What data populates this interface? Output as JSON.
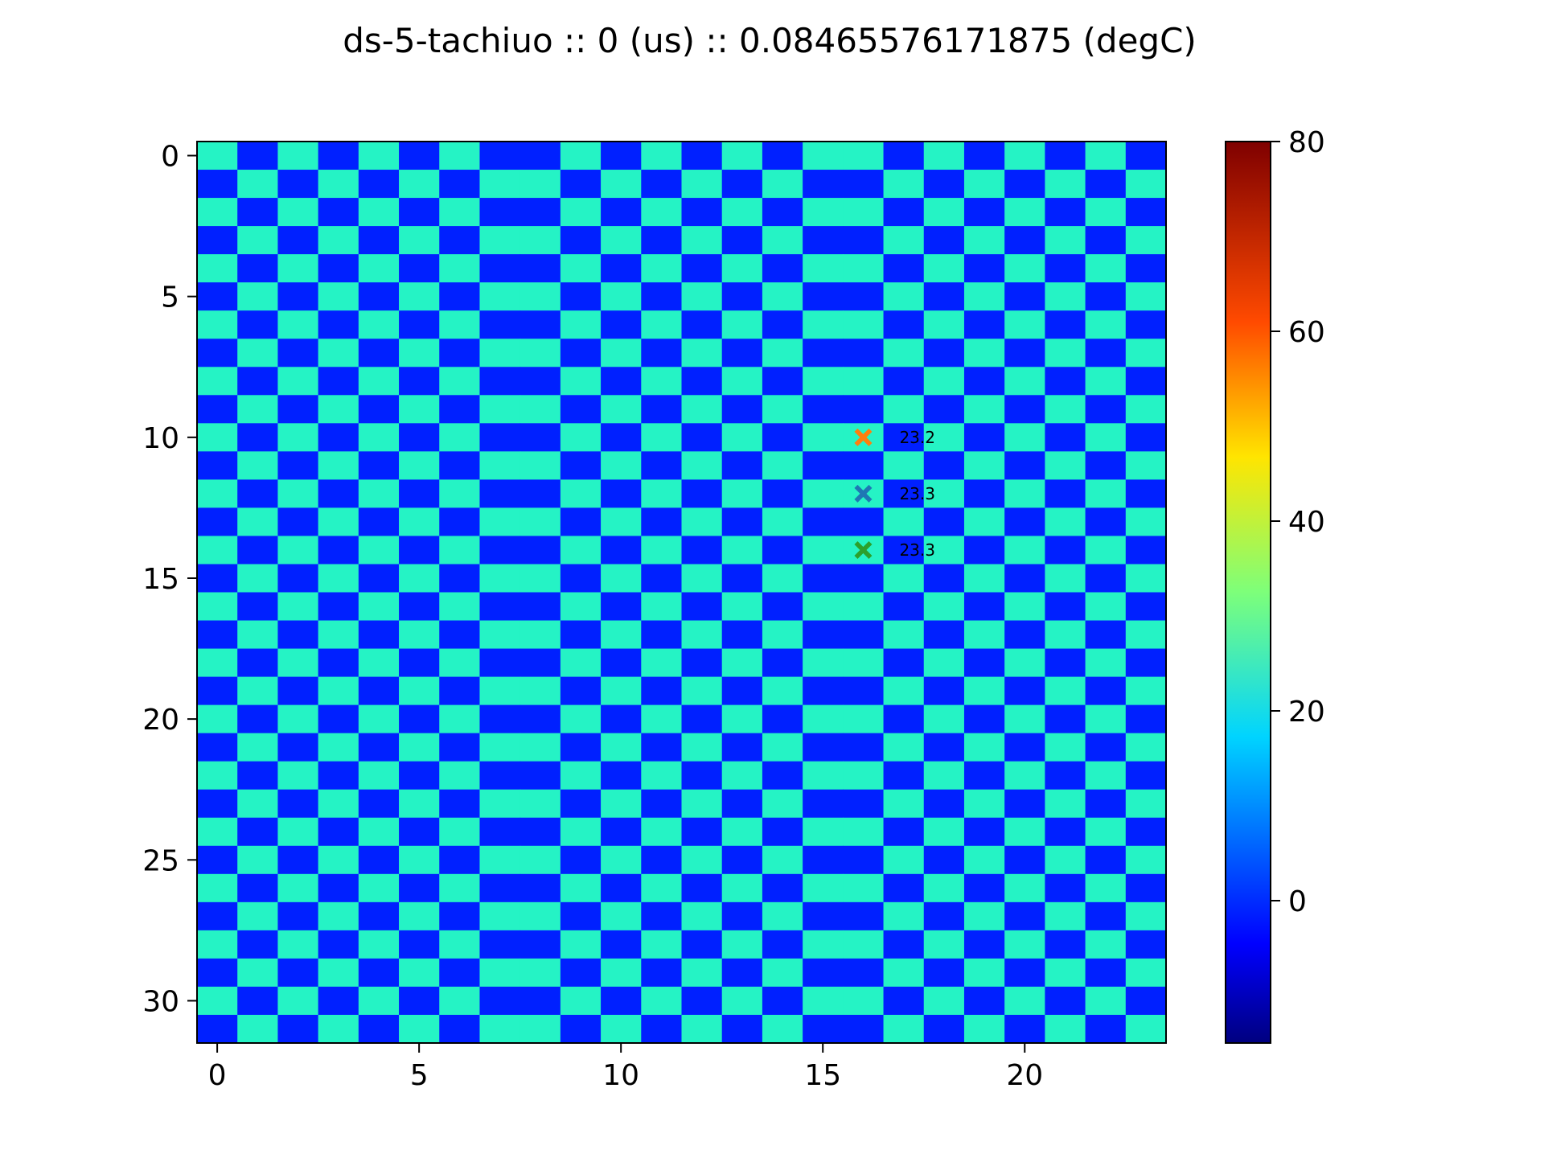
{
  "chart_data": {
    "type": "heatmap",
    "title": "ds-5-tachiuo :: 0 (us) :: 0.08465576171875 (degC)",
    "xlabel": "",
    "ylabel": "",
    "xlim": [
      -0.5,
      23.5
    ],
    "ylim": [
      31.5,
      -0.5
    ],
    "grid": false,
    "rows": 32,
    "cols": 24,
    "x_ticks": [
      0,
      5,
      10,
      15,
      20
    ],
    "y_ticks": [
      0,
      5,
      10,
      15,
      20,
      25,
      30
    ],
    "colormap": "jet",
    "color_range": [
      -15,
      80
    ],
    "colorbar_ticks": [
      0,
      20,
      40,
      60,
      80
    ],
    "cell_values": {
      "low": 0,
      "high": 23,
      "pattern": "checkerboard with phase shift at column 8 and column 16"
    },
    "markers": [
      {
        "x": 16,
        "y": 10,
        "label": "23.2",
        "color": "#ff7f0e"
      },
      {
        "x": 16,
        "y": 12,
        "label": "23.3",
        "color": "#1f77b4"
      },
      {
        "x": 16,
        "y": 14,
        "label": "23.3",
        "color": "#2ca02c"
      }
    ]
  }
}
